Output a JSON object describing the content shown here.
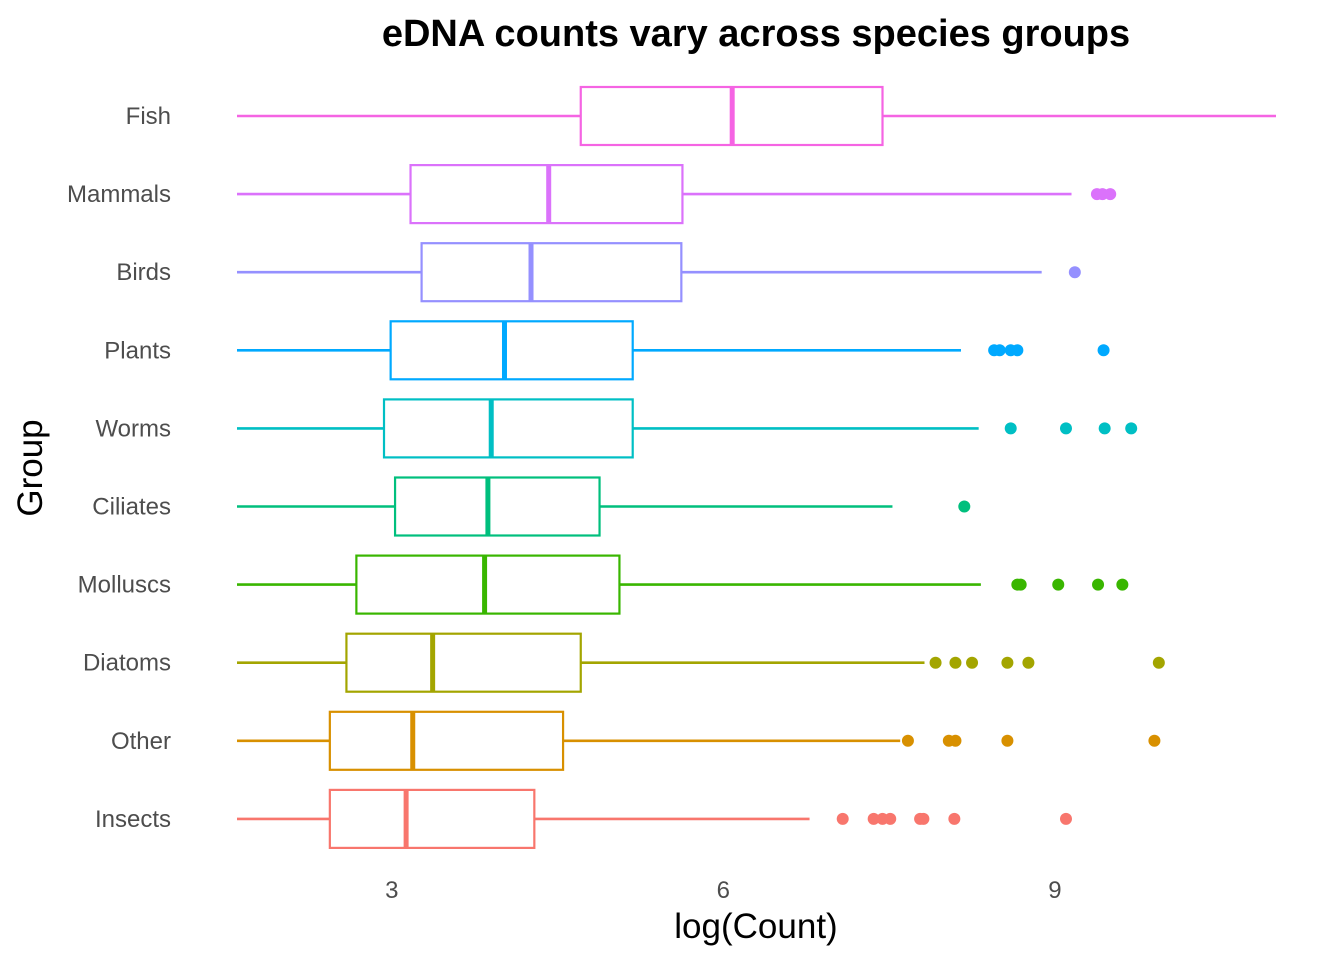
{
  "chart_data": {
    "type": "boxplot",
    "title": "eDNA counts vary across species groups",
    "xlabel": "log(Count)",
    "ylabel": "Group",
    "xlim": [
      1.6,
      11.0
    ],
    "x_ticks": [
      3,
      6,
      9
    ],
    "grid": false,
    "legend": "none",
    "categories": [
      "Fish",
      "Mammals",
      "Birds",
      "Plants",
      "Worms",
      "Ciliates",
      "Molluscs",
      "Diatoms",
      "Other",
      "Insects"
    ],
    "series": [
      {
        "group": "Fish",
        "color": "#F564E3",
        "whisker_low": 1.6,
        "q1": 4.71,
        "median": 6.08,
        "q3": 7.44,
        "whisker_high": 11.0,
        "outliers": []
      },
      {
        "group": "Mammals",
        "color": "#DB72FB",
        "whisker_low": 1.6,
        "q1": 3.17,
        "median": 4.42,
        "q3": 5.63,
        "whisker_high": 9.15,
        "outliers": [
          9.38,
          9.43,
          9.5
        ]
      },
      {
        "group": "Birds",
        "color": "#9590FF",
        "whisker_low": 1.6,
        "q1": 3.27,
        "median": 4.26,
        "q3": 5.62,
        "whisker_high": 8.88,
        "outliers": [
          9.18
        ]
      },
      {
        "group": "Plants",
        "color": "#00A9FF",
        "whisker_low": 1.6,
        "q1": 2.99,
        "median": 4.02,
        "q3": 5.18,
        "whisker_high": 8.15,
        "outliers": [
          8.45,
          8.5,
          8.6,
          8.66,
          9.44
        ]
      },
      {
        "group": "Worms",
        "color": "#00BFC4",
        "whisker_low": 1.6,
        "q1": 2.93,
        "median": 3.9,
        "q3": 5.18,
        "whisker_high": 8.31,
        "outliers": [
          8.6,
          9.1,
          9.45,
          9.69
        ]
      },
      {
        "group": "Ciliates",
        "color": "#00BF7D",
        "whisker_low": 1.6,
        "q1": 3.03,
        "median": 3.87,
        "q3": 4.88,
        "whisker_high": 7.53,
        "outliers": [
          8.18
        ]
      },
      {
        "group": "Molluscs",
        "color": "#39B600",
        "whisker_low": 1.6,
        "q1": 2.68,
        "median": 3.84,
        "q3": 5.06,
        "whisker_high": 8.33,
        "outliers": [
          8.66,
          8.69,
          9.03,
          9.39,
          9.61
        ]
      },
      {
        "group": "Diatoms",
        "color": "#A3A500",
        "whisker_low": 1.6,
        "q1": 2.59,
        "median": 3.37,
        "q3": 4.71,
        "whisker_high": 7.82,
        "outliers": [
          7.92,
          8.1,
          8.25,
          8.57,
          8.76,
          9.94
        ]
      },
      {
        "group": "Other",
        "color": "#D89000",
        "whisker_low": 1.6,
        "q1": 2.44,
        "median": 3.19,
        "q3": 4.55,
        "whisker_high": 7.6,
        "outliers": [
          7.67,
          8.04,
          8.1,
          8.57,
          9.9
        ]
      },
      {
        "group": "Insects",
        "color": "#F8766D",
        "whisker_low": 1.6,
        "q1": 2.44,
        "median": 3.13,
        "q3": 4.29,
        "whisker_high": 6.78,
        "outliers": [
          7.08,
          7.36,
          7.44,
          7.51,
          7.78,
          7.81,
          8.09,
          9.1
        ]
      }
    ]
  }
}
